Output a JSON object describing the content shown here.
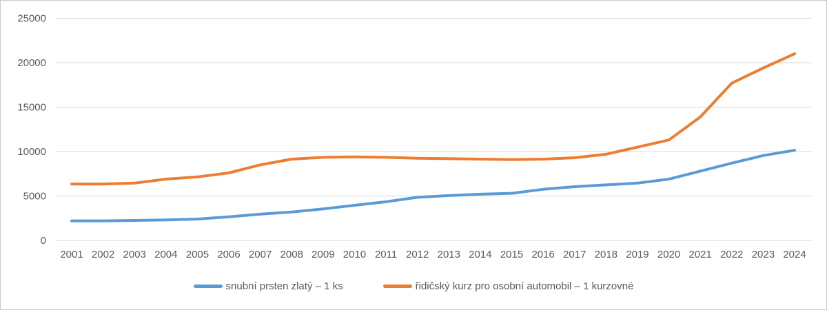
{
  "chart_data": {
    "type": "line",
    "title": "",
    "categories": [
      "2001",
      "2002",
      "2003",
      "2004",
      "2005",
      "2006",
      "2007",
      "2008",
      "2009",
      "2010",
      "2011",
      "2012",
      "2013",
      "2014",
      "2015",
      "2016",
      "2017",
      "2018",
      "2019",
      "2020",
      "2021",
      "2022",
      "2023",
      "2024"
    ],
    "series": [
      {
        "name": "snubní prsten zlatý – 1 ks",
        "color": "#5B9BD5",
        "values": [
          2200,
          2200,
          2250,
          2300,
          2400,
          2650,
          2950,
          3200,
          3550,
          3950,
          4350,
          4850,
          5050,
          5200,
          5300,
          5750,
          6050,
          6250,
          6450,
          6900,
          7800,
          8700,
          9550,
          10150
        ]
      },
      {
        "name": "řidičský kurz pro osobní automobil – 1 kurzovné",
        "color": "#ED7D31",
        "values": [
          6350,
          6350,
          6450,
          6900,
          7150,
          7600,
          8500,
          9150,
          9350,
          9400,
          9350,
          9250,
          9200,
          9150,
          9100,
          9150,
          9300,
          9700,
          10500,
          11300,
          13900,
          17700,
          19400,
          21000
        ]
      }
    ],
    "xlabel": "",
    "ylabel": "",
    "ylim": [
      0,
      25000
    ],
    "ytick_step": 5000,
    "yticks": [
      "0",
      "5000",
      "10000",
      "15000",
      "20000",
      "25000"
    ],
    "grid": "horizontal",
    "gridline_color": "#d9d9d9",
    "axis_text_color": "#595959",
    "legend_position": "bottom"
  }
}
